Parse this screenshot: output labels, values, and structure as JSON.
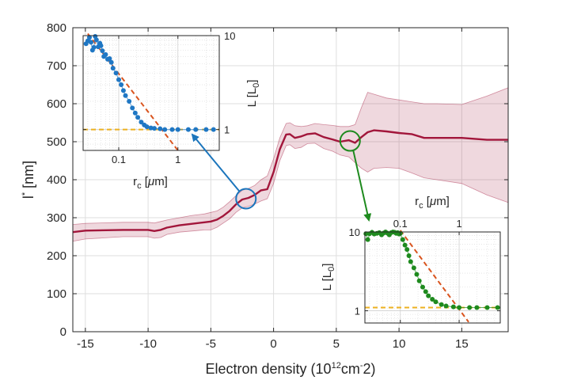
{
  "chart_data": [
    {
      "type": "line",
      "xlabel_parts": [
        "Electron density (10",
        "12",
        "cm",
        "-",
        "2)"
      ],
      "ylabel_parts": [
        "l",
        "*",
        " [nm]"
      ],
      "xlim": [
        -16,
        18.7
      ],
      "ylim": [
        0,
        800
      ],
      "xticks": [
        "-15",
        "-10",
        "-5",
        "0",
        "5",
        "10",
        "15"
      ],
      "xtick_values": [
        -15,
        -10,
        -5,
        0,
        5,
        10,
        15
      ],
      "yticks": [
        "0",
        "100",
        "200",
        "300",
        "400",
        "500",
        "600",
        "700",
        "800"
      ],
      "ytick_values": [
        0,
        100,
        200,
        300,
        400,
        500,
        600,
        700,
        800
      ],
      "grid": true,
      "series": [
        {
          "color": "#a2163b",
          "x": [
            -16,
            -15,
            -12,
            -10,
            -9.5,
            -9,
            -8.5,
            -7.5,
            -6.5,
            -5.5,
            -5,
            -4.5,
            -4,
            -3.5,
            -3,
            -2.5,
            -2,
            -1.5,
            -1,
            -0.5,
            0,
            0.5,
            1,
            1.3,
            1.7,
            2.2,
            2.7,
            3.3,
            4,
            4.7,
            5.3,
            6,
            6.5,
            7,
            7.5,
            8,
            9,
            10,
            11,
            12,
            13,
            15,
            17,
            18.7
          ],
          "y": [
            262,
            266,
            268,
            268,
            265,
            268,
            274,
            280,
            284,
            288,
            290,
            295,
            305,
            318,
            335,
            348,
            352,
            360,
            372,
            375,
            420,
            480,
            519,
            520,
            510,
            514,
            520,
            522,
            512,
            506,
            500,
            504,
            497,
            512,
            525,
            530,
            527,
            523,
            520,
            510,
            510,
            510,
            505,
            505
          ],
          "upper": [
            282,
            285,
            288,
            288,
            286,
            290,
            294,
            300,
            306,
            310,
            314,
            318,
            328,
            342,
            358,
            372,
            377,
            385,
            400,
            410,
            455,
            510,
            548,
            550,
            542,
            540,
            542,
            548,
            545,
            543,
            540,
            540,
            545,
            590,
            630,
            625,
            615,
            610,
            605,
            600,
            600,
            598,
            620,
            642
          ],
          "lower": [
            238,
            244,
            250,
            250,
            246,
            248,
            256,
            262,
            265,
            268,
            268,
            275,
            286,
            297,
            314,
            326,
            330,
            336,
            344,
            350,
            390,
            450,
            490,
            492,
            482,
            485,
            495,
            496,
            482,
            475,
            465,
            460,
            445,
            430,
            420,
            430,
            432,
            430,
            418,
            405,
            400,
            390,
            360,
            340
          ]
        }
      ],
      "annotations": [
        {
          "type": "circle",
          "x": -2.2,
          "y": 350,
          "color": "#1b75bc"
        },
        {
          "type": "circle",
          "x": 6.1,
          "y": 502,
          "color": "#1e8a1e"
        }
      ]
    },
    {
      "type": "scatter",
      "xlabel_parts": [
        "r",
        "c",
        " [",
        "μ",
        "m]"
      ],
      "ylabel_parts": [
        "L [L",
        "0",
        "]"
      ],
      "xscale": "log",
      "yscale": "log",
      "xlim": [
        0.025,
        5
      ],
      "ylim": [
        0.6,
        10
      ],
      "xticks": [
        "0.1",
        "1"
      ],
      "xtick_values": [
        0.1,
        1
      ],
      "yticks": [
        "1",
        "10"
      ],
      "ytick_values": [
        1,
        10
      ],
      "points_color": "#1f77c4",
      "x": [
        0.028,
        0.03,
        0.032,
        0.034,
        0.036,
        0.038,
        0.04,
        0.042,
        0.045,
        0.048,
        0.05,
        0.053,
        0.056,
        0.06,
        0.065,
        0.07,
        0.075,
        0.08,
        0.09,
        0.1,
        0.11,
        0.12,
        0.13,
        0.15,
        0.17,
        0.19,
        0.21,
        0.24,
        0.27,
        0.3,
        0.35,
        0.4,
        0.5,
        0.6,
        0.8,
        1,
        1.5,
        2,
        3,
        4
      ],
      "y": [
        8.2,
        8.8,
        9.6,
        8.5,
        7.0,
        7.5,
        9.8,
        9.0,
        7.6,
        8.3,
        7.8,
        6.9,
        6.0,
        6.3,
        5.6,
        5.7,
        5.2,
        4.5,
        4.0,
        3.4,
        3.0,
        2.6,
        2.3,
        2.0,
        1.7,
        1.5,
        1.35,
        1.2,
        1.12,
        1.07,
        1.04,
        1.03,
        1.02,
        1.0,
        1.0,
        1.0,
        1.0,
        1.0,
        1.0,
        1.0
      ],
      "fit_power_law": {
        "x": [
          0.03,
          1.0
        ],
        "y": [
          10.5,
          0.6
        ],
        "color": "#d9541e"
      },
      "baseline": {
        "y": 1.0,
        "color": "#edb120"
      }
    },
    {
      "type": "scatter",
      "xlabel_parts": [
        "r",
        "c",
        " [",
        "μ",
        "m]"
      ],
      "ylabel_parts": [
        "L [L",
        "0",
        "]"
      ],
      "xscale": "log",
      "yscale": "log",
      "xlim": [
        0.025,
        5
      ],
      "ylim": [
        0.7,
        10
      ],
      "xticks": [
        "0.1",
        "1"
      ],
      "xtick_values": [
        0.1,
        1
      ],
      "yticks": [
        "1",
        "10"
      ],
      "ytick_values": [
        1,
        10
      ],
      "points_color": "#1e8a1e",
      "x": [
        0.026,
        0.028,
        0.03,
        0.033,
        0.036,
        0.04,
        0.044,
        0.048,
        0.052,
        0.056,
        0.06,
        0.065,
        0.07,
        0.075,
        0.08,
        0.085,
        0.09,
        0.095,
        0.1,
        0.11,
        0.12,
        0.13,
        0.14,
        0.15,
        0.17,
        0.19,
        0.21,
        0.24,
        0.27,
        0.3,
        0.35,
        0.4,
        0.5,
        0.6,
        0.8,
        1,
        1.5,
        2,
        3,
        4.5
      ],
      "y": [
        9.5,
        8.0,
        9.5,
        9.9,
        9.4,
        9.6,
        9.8,
        9.2,
        9.7,
        10.0,
        9.7,
        9.2,
        9.8,
        10.0,
        9.9,
        9.6,
        9.8,
        9.4,
        9.6,
        8.0,
        6.8,
        6.0,
        5.0,
        4.2,
        3.5,
        2.9,
        2.4,
        2.0,
        1.75,
        1.55,
        1.4,
        1.3,
        1.2,
        1.15,
        1.12,
        1.1,
        1.1,
        1.1,
        1.1,
        1.1
      ],
      "fit_power_law": {
        "x": [
          0.1,
          1.45
        ],
        "y": [
          10.5,
          0.72
        ],
        "color": "#d9541e"
      },
      "baseline": {
        "y": 1.1,
        "color": "#edb120"
      }
    }
  ]
}
